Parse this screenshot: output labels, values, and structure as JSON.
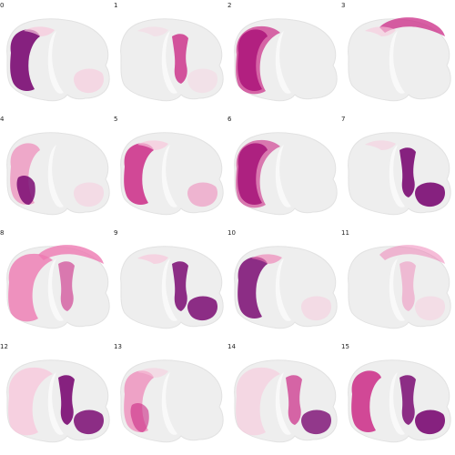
{
  "colors": {
    "brain_base": "#eeeeee",
    "brain_outline": "#e2e2e2",
    "sulcus": "#f9f9f9",
    "light_pink": "#f8c8dc",
    "mid_pink": "#ee79b1",
    "magenta": "#cb2a86",
    "deep_purple": "#7a0a72"
  },
  "panels": [
    {
      "label": "0",
      "blobs": [
        {
          "shape": "cortex",
          "color": "deep_purple",
          "opacity": 0.9
        },
        {
          "shape": "frontal",
          "color": "light_pink",
          "opacity": 0.7
        },
        {
          "shape": "cerebellum",
          "color": "light_pink",
          "opacity": 0.6
        }
      ]
    },
    {
      "label": "1",
      "blobs": [
        {
          "shape": "deep",
          "color": "magenta",
          "opacity": 0.8
        },
        {
          "shape": "frontal",
          "color": "light_pink",
          "opacity": 0.35
        },
        {
          "shape": "cerebellum",
          "color": "light_pink",
          "opacity": 0.35
        }
      ]
    },
    {
      "label": "2",
      "blobs": [
        {
          "shape": "cortex",
          "color": "deep_purple",
          "opacity": 1.0
        },
        {
          "shape": "cortex_wide",
          "color": "magenta",
          "opacity": 0.7
        }
      ]
    },
    {
      "label": "3",
      "blobs": [
        {
          "shape": "top_arc",
          "color": "magenta",
          "opacity": 0.75
        },
        {
          "shape": "frontal",
          "color": "light_pink",
          "opacity": 0.6
        }
      ]
    },
    {
      "label": "4",
      "blobs": [
        {
          "shape": "cortex",
          "color": "mid_pink",
          "opacity": 0.6
        },
        {
          "shape": "lower_left",
          "color": "deep_purple",
          "opacity": 0.85
        },
        {
          "shape": "cerebellum",
          "color": "light_pink",
          "opacity": 0.5
        }
      ]
    },
    {
      "label": "5",
      "blobs": [
        {
          "shape": "cortex",
          "color": "magenta",
          "opacity": 0.85
        },
        {
          "shape": "frontal",
          "color": "light_pink",
          "opacity": 0.7
        },
        {
          "shape": "cerebellum",
          "color": "mid_pink",
          "opacity": 0.5
        }
      ]
    },
    {
      "label": "6",
      "blobs": [
        {
          "shape": "cortex",
          "color": "deep_purple",
          "opacity": 0.95
        },
        {
          "shape": "cortex_wide",
          "color": "magenta",
          "opacity": 0.6
        }
      ]
    },
    {
      "label": "7",
      "blobs": [
        {
          "shape": "deep",
          "color": "deep_purple",
          "opacity": 0.9
        },
        {
          "shape": "cerebellum",
          "color": "deep_purple",
          "opacity": 0.9
        },
        {
          "shape": "frontal",
          "color": "light_pink",
          "opacity": 0.5
        }
      ]
    },
    {
      "label": "8",
      "blobs": [
        {
          "shape": "cortex_wide",
          "color": "mid_pink",
          "opacity": 0.8
        },
        {
          "shape": "top_arc",
          "color": "mid_pink",
          "opacity": 0.8
        },
        {
          "shape": "deep",
          "color": "magenta",
          "opacity": 0.6
        }
      ]
    },
    {
      "label": "9",
      "blobs": [
        {
          "shape": "deep",
          "color": "deep_purple",
          "opacity": 0.85
        },
        {
          "shape": "cerebellum",
          "color": "deep_purple",
          "opacity": 0.85
        },
        {
          "shape": "frontal",
          "color": "light_pink",
          "opacity": 0.7
        }
      ]
    },
    {
      "label": "10",
      "blobs": [
        {
          "shape": "cortex",
          "color": "deep_purple",
          "opacity": 0.85
        },
        {
          "shape": "frontal",
          "color": "mid_pink",
          "opacity": 0.6
        },
        {
          "shape": "cerebellum",
          "color": "light_pink",
          "opacity": 0.5
        }
      ]
    },
    {
      "label": "11",
      "blobs": [
        {
          "shape": "top_arc",
          "color": "mid_pink",
          "opacity": 0.5
        },
        {
          "shape": "deep",
          "color": "mid_pink",
          "opacity": 0.45
        },
        {
          "shape": "cerebellum",
          "color": "light_pink",
          "opacity": 0.45
        }
      ]
    },
    {
      "label": "12",
      "blobs": [
        {
          "shape": "deep",
          "color": "deep_purple",
          "opacity": 0.9
        },
        {
          "shape": "cerebellum",
          "color": "deep_purple",
          "opacity": 0.85
        },
        {
          "shape": "cortex_wide",
          "color": "light_pink",
          "opacity": 0.8
        }
      ]
    },
    {
      "label": "13",
      "blobs": [
        {
          "shape": "cortex",
          "color": "mid_pink",
          "opacity": 0.65
        },
        {
          "shape": "lower_left",
          "color": "magenta",
          "opacity": 0.6
        },
        {
          "shape": "frontal",
          "color": "light_pink",
          "opacity": 0.5
        }
      ]
    },
    {
      "label": "14",
      "blobs": [
        {
          "shape": "deep",
          "color": "magenta",
          "opacity": 0.7
        },
        {
          "shape": "cerebellum",
          "color": "deep_purple",
          "opacity": 0.8
        },
        {
          "shape": "cortex_wide",
          "color": "light_pink",
          "opacity": 0.6
        }
      ]
    },
    {
      "label": "15",
      "blobs": [
        {
          "shape": "cortex",
          "color": "magenta",
          "opacity": 0.85
        },
        {
          "shape": "deep",
          "color": "deep_purple",
          "opacity": 0.85
        },
        {
          "shape": "cerebellum",
          "color": "deep_purple",
          "opacity": 0.9
        }
      ]
    }
  ]
}
